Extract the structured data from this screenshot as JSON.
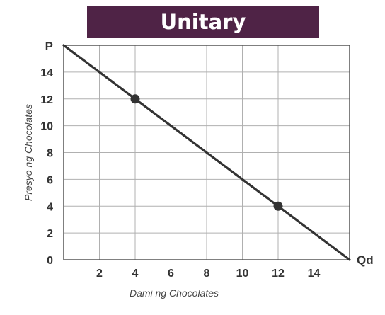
{
  "title": "Unitary",
  "colors": {
    "banner": "#4f2346",
    "line": "#333333",
    "grid": "#b0b0b0",
    "point": "#333333"
  },
  "chart_data": {
    "type": "line",
    "title": "Unitary",
    "xlabel": "Dami ng Chocolates",
    "ylabel": "Presyo ng Chocolates",
    "x_end_label": "Qd",
    "y_end_label": "P",
    "xlim": [
      0,
      16
    ],
    "ylim": [
      0,
      16
    ],
    "x_ticks": [
      2,
      4,
      6,
      8,
      10,
      12,
      14
    ],
    "y_ticks": [
      0,
      2,
      4,
      6,
      8,
      10,
      12,
      14
    ],
    "grid": true,
    "series": [
      {
        "x": [
          0,
          16
        ],
        "y": [
          16,
          0
        ]
      }
    ],
    "points": [
      {
        "x": 4,
        "y": 12
      },
      {
        "x": 12,
        "y": 4
      }
    ]
  }
}
